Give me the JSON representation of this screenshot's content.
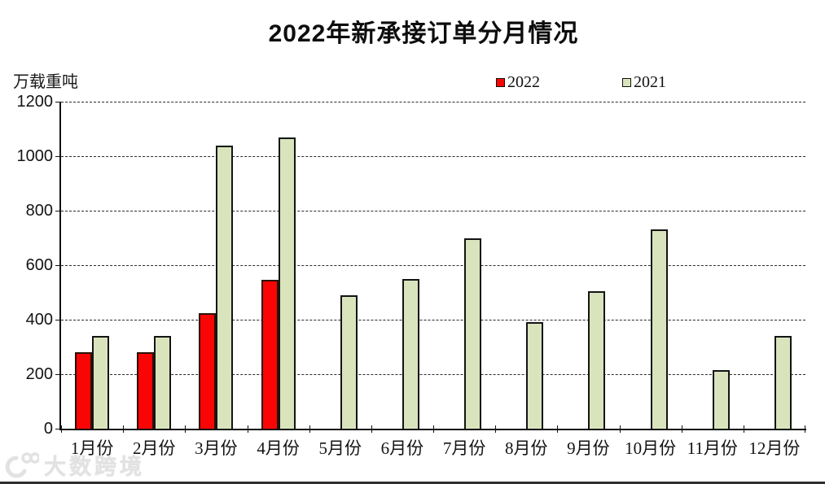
{
  "title": "2022年新承接订单分月情况",
  "unit_label": "万载重吨",
  "watermark_text": "大数跨境",
  "chart_data": {
    "type": "bar",
    "title": "2022年新承接订单分月情况",
    "ylabel": "万载重吨",
    "xlabel": "",
    "ylim": [
      0,
      1200
    ],
    "y_ticks": [
      0,
      200,
      400,
      600,
      800,
      1000,
      1200
    ],
    "grid": "horizontal-dashed",
    "legend_position": "top",
    "categories": [
      "1月份",
      "2月份",
      "3月份",
      "4月份",
      "5月份",
      "6月份",
      "7月份",
      "8月份",
      "9月份",
      "10月份",
      "11月份",
      "12月份"
    ],
    "series": [
      {
        "name": "2022",
        "color": "#fa0505",
        "border_color": "#2a1206",
        "values": [
          280,
          280,
          425,
          545,
          null,
          null,
          null,
          null,
          null,
          null,
          null,
          null
        ]
      },
      {
        "name": "2021",
        "color": "#d9e4bd",
        "border_color": "#141414",
        "values": [
          340,
          340,
          1040,
          1070,
          490,
          550,
          700,
          390,
          505,
          730,
          215,
          340
        ]
      }
    ]
  }
}
